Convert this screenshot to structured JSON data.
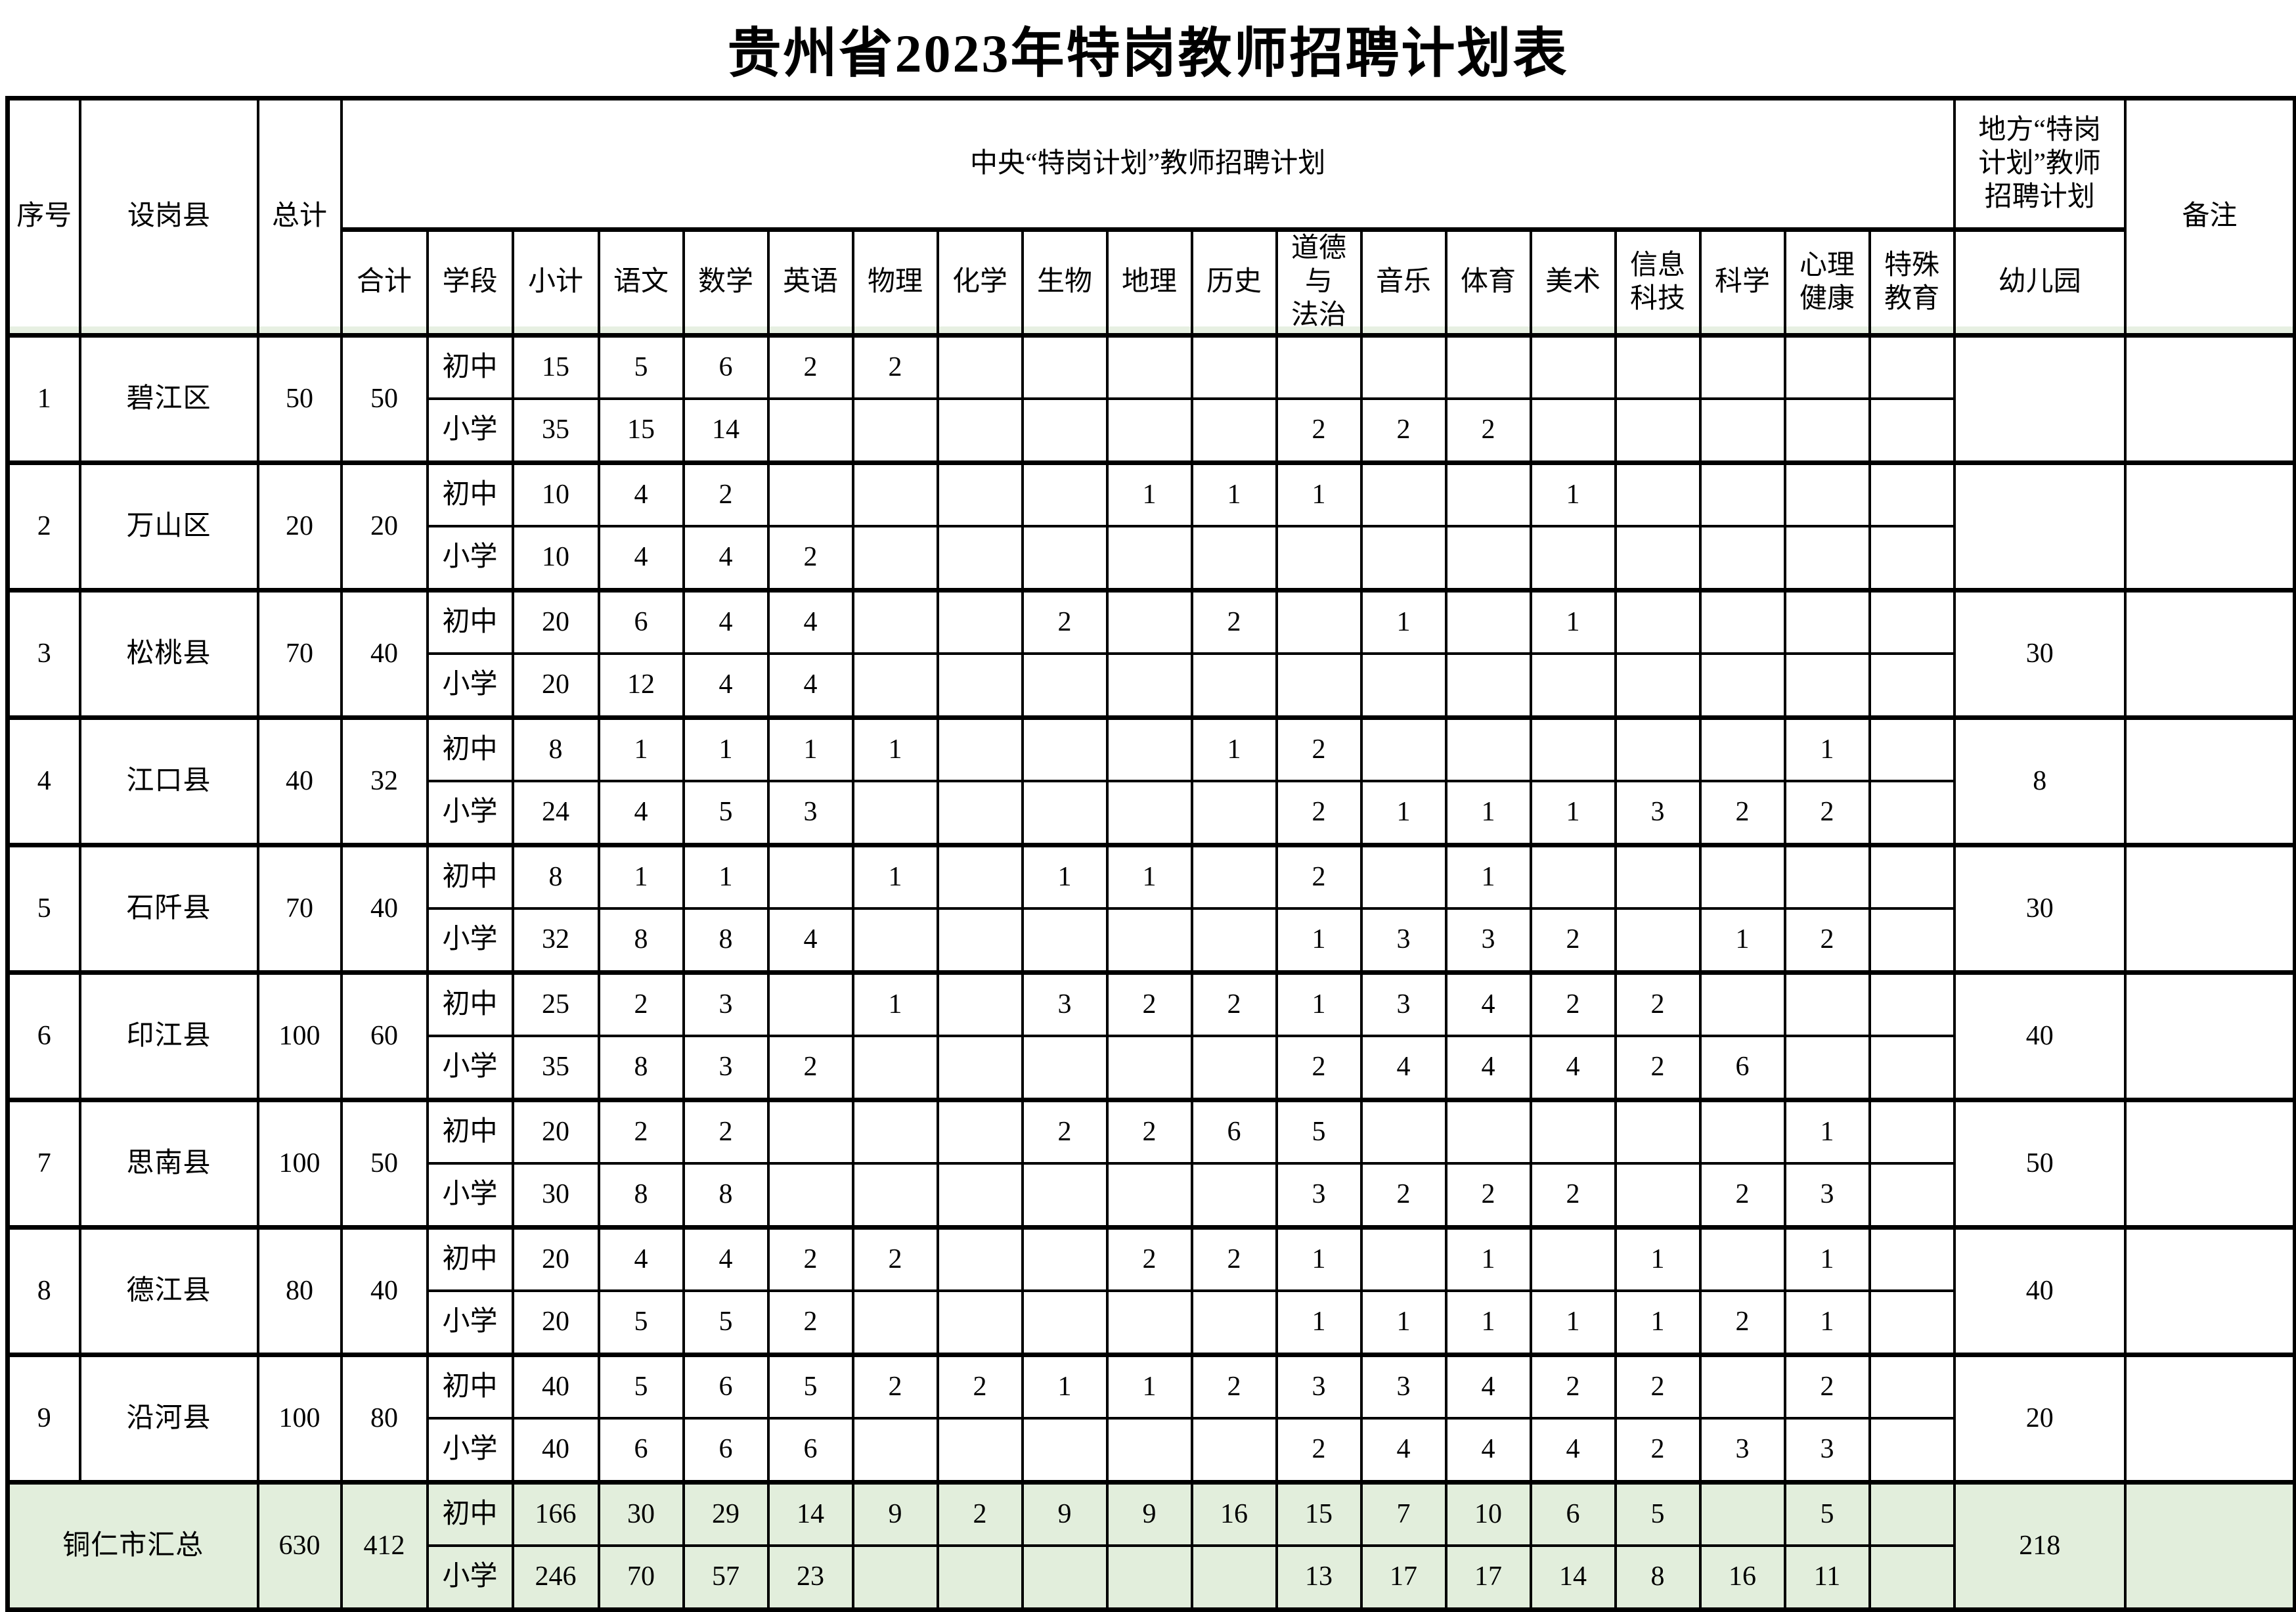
{
  "title": "贵州省2023年特岗教师招聘计划表",
  "colors": {
    "summary_bg": "#e2eedc",
    "header_stripe": "#e7f0e2",
    "border": "#000000"
  },
  "table": {
    "header": {
      "xuhao": "序号",
      "shegangxian": "设岗县",
      "zongji": "总计",
      "central_group": "中央“特岗计划”教师招聘计划",
      "local_group": "地方“特岗\n计划”教师\n招聘计划",
      "beizhu": "备注",
      "sub": [
        "合计",
        "学段",
        "小计",
        "语文",
        "数学",
        "英语",
        "物理",
        "化学",
        "生物",
        "地理",
        "历史",
        "道德与\n法治",
        "音乐",
        "体育",
        "美术",
        "信息\n科技",
        "科学",
        "心理\n健康",
        "特殊\n教育"
      ],
      "kindergarten_label": "幼儿园"
    },
    "subject_keys": [
      "chinese",
      "math",
      "english",
      "physics",
      "chemistry",
      "biology",
      "geography",
      "history",
      "morality-law",
      "music",
      "pe",
      "art",
      "info-tech",
      "science",
      "mental-health",
      "special-ed"
    ],
    "rows": [
      {
        "no": "1",
        "county": "碧江区",
        "total": "50",
        "heji": "50",
        "kindergarten": "",
        "remark": "",
        "stages": [
          {
            "label": "初中",
            "xiaoji": "15",
            "subjects": [
              "5",
              "6",
              "2",
              "2",
              "",
              "",
              "",
              "",
              "",
              "",
              "",
              "",
              "",
              "",
              "",
              ""
            ]
          },
          {
            "label": "小学",
            "xiaoji": "35",
            "subjects": [
              "15",
              "14",
              "",
              "",
              "",
              "",
              "",
              "",
              "2",
              "2",
              "2",
              "",
              "",
              "",
              "",
              ""
            ]
          }
        ]
      },
      {
        "no": "2",
        "county": "万山区",
        "total": "20",
        "heji": "20",
        "kindergarten": "",
        "remark": "",
        "stages": [
          {
            "label": "初中",
            "xiaoji": "10",
            "subjects": [
              "4",
              "2",
              "",
              "",
              "",
              "",
              "1",
              "1",
              "1",
              "",
              "",
              "1",
              "",
              "",
              "",
              ""
            ]
          },
          {
            "label": "小学",
            "xiaoji": "10",
            "subjects": [
              "4",
              "4",
              "2",
              "",
              "",
              "",
              "",
              "",
              "",
              "",
              "",
              "",
              "",
              "",
              "",
              ""
            ]
          }
        ]
      },
      {
        "no": "3",
        "county": "松桃县",
        "total": "70",
        "heji": "40",
        "kindergarten": "30",
        "remark": "",
        "stages": [
          {
            "label": "初中",
            "xiaoji": "20",
            "subjects": [
              "6",
              "4",
              "4",
              "",
              "",
              "2",
              "",
              "2",
              "",
              "1",
              "",
              "1",
              "",
              "",
              "",
              ""
            ]
          },
          {
            "label": "小学",
            "xiaoji": "20",
            "subjects": [
              "12",
              "4",
              "4",
              "",
              "",
              "",
              "",
              "",
              "",
              "",
              "",
              "",
              "",
              "",
              "",
              ""
            ]
          }
        ]
      },
      {
        "no": "4",
        "county": "江口县",
        "total": "40",
        "heji": "32",
        "kindergarten": "8",
        "remark": "",
        "stages": [
          {
            "label": "初中",
            "xiaoji": "8",
            "subjects": [
              "1",
              "1",
              "1",
              "1",
              "",
              "",
              "",
              "1",
              "2",
              "",
              "",
              "",
              "",
              "",
              "1",
              ""
            ]
          },
          {
            "label": "小学",
            "xiaoji": "24",
            "subjects": [
              "4",
              "5",
              "3",
              "",
              "",
              "",
              "",
              "",
              "2",
              "1",
              "1",
              "1",
              "3",
              "2",
              "2",
              ""
            ]
          }
        ]
      },
      {
        "no": "5",
        "county": "石阡县",
        "total": "70",
        "heji": "40",
        "kindergarten": "30",
        "remark": "",
        "stages": [
          {
            "label": "初中",
            "xiaoji": "8",
            "subjects": [
              "1",
              "1",
              "",
              "1",
              "",
              "1",
              "1",
              "",
              "2",
              "",
              "1",
              "",
              "",
              "",
              "",
              ""
            ]
          },
          {
            "label": "小学",
            "xiaoji": "32",
            "subjects": [
              "8",
              "8",
              "4",
              "",
              "",
              "",
              "",
              "",
              "1",
              "3",
              "3",
              "2",
              "",
              "1",
              "2",
              ""
            ]
          }
        ]
      },
      {
        "no": "6",
        "county": "印江县",
        "total": "100",
        "heji": "60",
        "kindergarten": "40",
        "remark": "",
        "stages": [
          {
            "label": "初中",
            "xiaoji": "25",
            "subjects": [
              "2",
              "3",
              "",
              "1",
              "",
              "3",
              "2",
              "2",
              "1",
              "3",
              "4",
              "2",
              "2",
              "",
              "",
              ""
            ]
          },
          {
            "label": "小学",
            "xiaoji": "35",
            "subjects": [
              "8",
              "3",
              "2",
              "",
              "",
              "",
              "",
              "",
              "2",
              "4",
              "4",
              "4",
              "2",
              "6",
              "",
              ""
            ]
          }
        ]
      },
      {
        "no": "7",
        "county": "思南县",
        "total": "100",
        "heji": "50",
        "kindergarten": "50",
        "remark": "",
        "stages": [
          {
            "label": "初中",
            "xiaoji": "20",
            "subjects": [
              "2",
              "2",
              "",
              "",
              "",
              "2",
              "2",
              "6",
              "5",
              "",
              "",
              "",
              "",
              "",
              "1",
              ""
            ]
          },
          {
            "label": "小学",
            "xiaoji": "30",
            "subjects": [
              "8",
              "8",
              "",
              "",
              "",
              "",
              "",
              "",
              "3",
              "2",
              "2",
              "2",
              "",
              "2",
              "3",
              ""
            ]
          }
        ]
      },
      {
        "no": "8",
        "county": "德江县",
        "total": "80",
        "heji": "40",
        "kindergarten": "40",
        "remark": "",
        "stages": [
          {
            "label": "初中",
            "xiaoji": "20",
            "subjects": [
              "4",
              "4",
              "2",
              "2",
              "",
              "",
              "2",
              "2",
              "1",
              "",
              "1",
              "",
              "1",
              "",
              "1",
              ""
            ]
          },
          {
            "label": "小学",
            "xiaoji": "20",
            "subjects": [
              "5",
              "5",
              "2",
              "",
              "",
              "",
              "",
              "",
              "1",
              "1",
              "1",
              "1",
              "1",
              "2",
              "1",
              ""
            ]
          }
        ]
      },
      {
        "no": "9",
        "county": "沿河县",
        "total": "100",
        "heji": "80",
        "kindergarten": "20",
        "remark": "",
        "stages": [
          {
            "label": "初中",
            "xiaoji": "40",
            "subjects": [
              "5",
              "6",
              "5",
              "2",
              "2",
              "1",
              "1",
              "2",
              "3",
              "3",
              "4",
              "2",
              "2",
              "",
              "2",
              ""
            ]
          },
          {
            "label": "小学",
            "xiaoji": "40",
            "subjects": [
              "6",
              "6",
              "6",
              "",
              "",
              "",
              "",
              "",
              "2",
              "4",
              "4",
              "4",
              "2",
              "3",
              "3",
              ""
            ]
          }
        ]
      }
    ],
    "summary": {
      "label": "铜仁市汇总",
      "total": "630",
      "heji": "412",
      "kindergarten": "218",
      "remark": "",
      "stages": [
        {
          "label": "初中",
          "xiaoji": "166",
          "subjects": [
            "30",
            "29",
            "14",
            "9",
            "2",
            "9",
            "9",
            "16",
            "15",
            "7",
            "10",
            "6",
            "5",
            "",
            "5",
            ""
          ]
        },
        {
          "label": "小学",
          "xiaoji": "246",
          "subjects": [
            "70",
            "57",
            "23",
            "",
            "",
            "",
            "",
            "",
            "13",
            "17",
            "17",
            "14",
            "8",
            "16",
            "11",
            ""
          ]
        }
      ]
    }
  }
}
